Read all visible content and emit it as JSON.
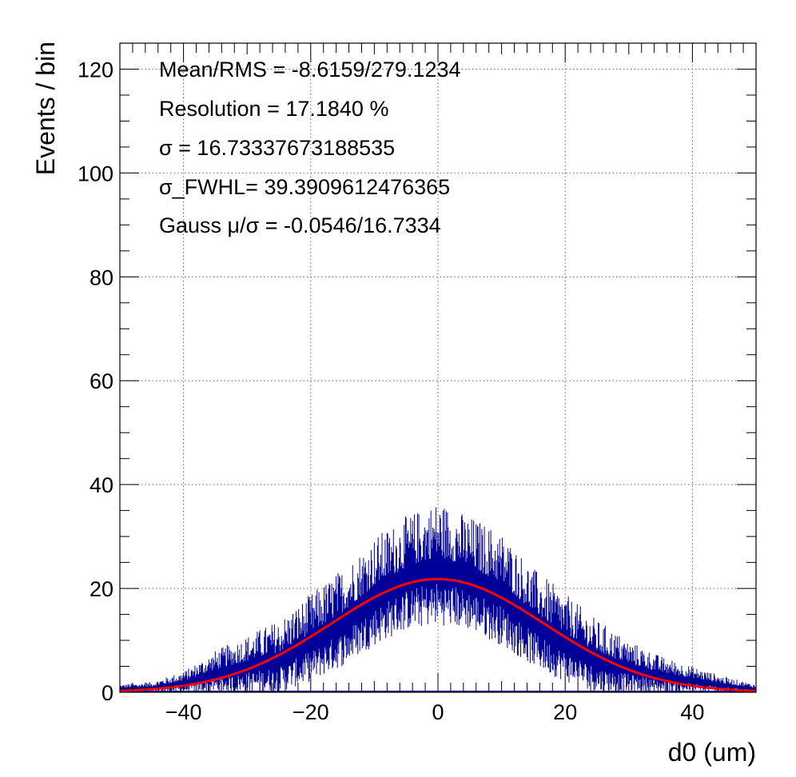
{
  "chart_data": {
    "type": "histogram",
    "xlabel": "d0 (um)",
    "ylabel": "Events / bin",
    "xlim": [
      -50,
      50
    ],
    "ylim": [
      0,
      125
    ],
    "xticks": [
      -40,
      -20,
      0,
      20,
      40
    ],
    "xtick_labels": [
      "−40",
      "−20",
      "0",
      "20",
      "40"
    ],
    "yticks": [
      0,
      20,
      40,
      60,
      80,
      100,
      120
    ],
    "ytick_labels": [
      "0",
      "20",
      "40",
      "60",
      "80",
      "100",
      "120"
    ],
    "grid": true,
    "stats": [
      "Mean/RMS = -8.6159/279.1234",
      "Resolution = 17.1840 %",
      "σ = 16.73337673188535",
      "σ_FWHL= 39.3909612476365",
      "Gauss  μ/σ = -0.0546/16.7334"
    ],
    "histogram": {
      "color": "#000099",
      "bin_width": 0.1,
      "envelope_x": [
        -50,
        -45,
        -40,
        -35,
        -30,
        -25,
        -20,
        -15,
        -10,
        -5,
        0,
        5,
        10,
        15,
        20,
        25,
        30,
        35,
        40,
        45,
        50
      ],
      "envelope_max": [
        1.5,
        2,
        4,
        8,
        11,
        14,
        19,
        24,
        30,
        34,
        37,
        34,
        31,
        24,
        19,
        14,
        10,
        7,
        5,
        3,
        1.5
      ],
      "envelope_min": [
        0,
        0,
        0,
        0,
        0,
        0,
        2,
        5,
        9,
        12,
        13,
        12,
        9,
        5,
        2,
        0,
        0,
        0,
        0,
        0,
        0
      ]
    },
    "fit": {
      "type": "gauss",
      "color": "#ff0000",
      "mean": -0.0546,
      "sigma": 16.7334,
      "amplitude": 21.8
    }
  }
}
